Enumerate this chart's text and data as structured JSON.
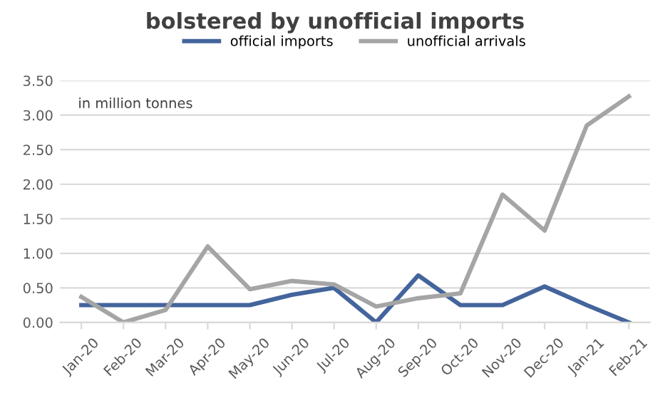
{
  "chart_data": {
    "type": "line",
    "title": "bolstered by unofficial imports",
    "categories": [
      "Jan-20",
      "Feb-20",
      "Mar-20",
      "Apr-20",
      "May-20",
      "Jun-20",
      "Jul-20",
      "Aug-20",
      "Sep-20",
      "Oct-20",
      "Nov-20",
      "Dec-20",
      "Jan-21",
      "Feb-21"
    ],
    "series": [
      {
        "name": "official imports",
        "color": "#44649c",
        "values": [
          0.25,
          0.25,
          0.25,
          0.25,
          0.25,
          0.4,
          0.5,
          0,
          0.68,
          0.25,
          0.25,
          0.52,
          0.25,
          0
        ]
      },
      {
        "name": "unofficial arrivals",
        "color": "#a5a5a5",
        "values": [
          0.37,
          0,
          0.18,
          1.1,
          0.48,
          0.6,
          0.55,
          0.23,
          0.35,
          0.42,
          1.85,
          1.33,
          2.85,
          3.27
        ]
      }
    ],
    "ylim": [
      0,
      3.5
    ],
    "yticks": [
      {
        "value": 0,
        "label": "0.00"
      },
      {
        "value": 0.5,
        "label": "0.50"
      },
      {
        "value": 1,
        "label": "1.00"
      },
      {
        "value": 1.5,
        "label": "1.50"
      },
      {
        "value": 2,
        "label": "2.00"
      },
      {
        "value": 2.5,
        "label": "2.50"
      },
      {
        "value": 3,
        "label": "3.00"
      },
      {
        "value": 3.5,
        "label": "3.50"
      }
    ],
    "annotations": [
      "in million tonnes"
    ],
    "grid": "y",
    "legend": "top",
    "marker": "none",
    "line_style": "solid"
  }
}
